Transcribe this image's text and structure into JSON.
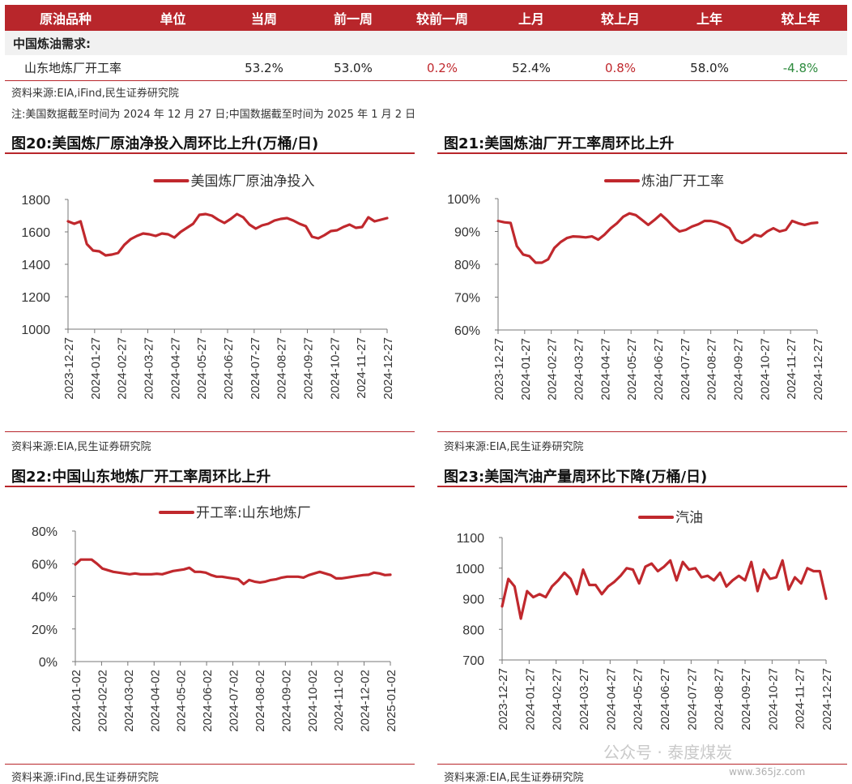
{
  "table": {
    "headers": [
      "原油品种",
      "单位",
      "当周",
      "前一周",
      "较前一周",
      "上月",
      "较上月",
      "上年",
      "较上年"
    ],
    "section_label": "中国炼油需求:",
    "row": {
      "name": "山东地炼厂开工率",
      "unit": "",
      "current": "53.2%",
      "prev_week": "53.0%",
      "wow": "0.2%",
      "last_month": "52.4%",
      "mom": "0.8%",
      "last_year": "58.0%",
      "yoy": "-4.8%"
    }
  },
  "notes": {
    "source": "资料来源:EIA,iFind,民生证券研究院",
    "note": "注:美国数据截至时间为 2024 年 12 月 27 日;中国数据截至时间为 2025 年 1 月 2 日"
  },
  "colors": {
    "accent": "#b8262b",
    "line": "#c0282d",
    "up": "#c0282d",
    "down": "#2e8b3e"
  },
  "charts": [
    {
      "title": "图20:美国炼厂原油净投入周环比上升(万桶/日)",
      "source": "资料来源:EIA,民生证券研究院"
    },
    {
      "title": "图21:美国炼油厂开工率周环比上升",
      "source": "资料来源:EIA,民生证券研究院"
    },
    {
      "title": "图22:中国山东地炼厂开工率周环比上升",
      "source": "资料来源:iFind,民生证券研究院"
    },
    {
      "title": "图23:美国汽油产量周环比下降(万桶/日)",
      "source": "资料来源:EIA,民生证券研究院"
    }
  ],
  "chart_data": [
    {
      "type": "line",
      "series": [
        {
          "name": "美国炼厂原油净投入",
          "values": [
            1665,
            1650,
            1665,
            1525,
            1485,
            1480,
            1455,
            1460,
            1470,
            1520,
            1555,
            1575,
            1590,
            1585,
            1575,
            1590,
            1585,
            1565,
            1600,
            1625,
            1650,
            1705,
            1710,
            1700,
            1675,
            1655,
            1680,
            1710,
            1690,
            1645,
            1620,
            1640,
            1650,
            1670,
            1680,
            1685,
            1670,
            1650,
            1635,
            1570,
            1560,
            1580,
            1605,
            1610,
            1630,
            1645,
            1625,
            1630,
            1690,
            1665,
            1675,
            1685
          ]
        }
      ],
      "x_tick_labels": [
        "2023-12-27",
        "2024-01-27",
        "2024-02-27",
        "2024-03-27",
        "2024-04-27",
        "2024-05-27",
        "2024-06-27",
        "2024-07-27",
        "2024-08-27",
        "2024-09-27",
        "2024-10-27",
        "2024-11-27",
        "2024-12-27"
      ],
      "y_ticks": [
        "1800",
        "1600",
        "1400",
        "1200",
        "1000"
      ],
      "ylim": [
        1000,
        1800
      ],
      "legend": "top"
    },
    {
      "type": "line",
      "series": [
        {
          "name": "炼油厂开工率",
          "values": [
            93.2,
            92.8,
            92.6,
            85.5,
            83,
            82.5,
            80.5,
            80.5,
            81.5,
            85,
            86.8,
            88,
            88.5,
            88.4,
            88.2,
            88.5,
            87.5,
            89,
            91,
            92.5,
            94.5,
            95.5,
            95,
            93.5,
            92,
            93.5,
            95.2,
            93.5,
            91.5,
            90,
            90.5,
            91.5,
            92.2,
            93.2,
            93.2,
            92.8,
            92,
            91,
            87.5,
            86.5,
            87.5,
            89,
            88.5,
            90,
            91,
            90,
            90.5,
            93.2,
            92.5,
            92,
            92.5,
            92.7
          ]
        }
      ],
      "x_tick_labels": [
        "2023-12-27",
        "2024-01-27",
        "2024-02-27",
        "2024-03-27",
        "2024-04-27",
        "2024-05-27",
        "2024-06-27",
        "2024-07-27",
        "2024-08-27",
        "2024-09-27",
        "2024-10-27",
        "2024-11-27",
        "2024-12-27"
      ],
      "y_ticks": [
        "100%",
        "90%",
        "80%",
        "70%",
        "60%"
      ],
      "ylim": [
        60,
        100
      ],
      "legend": "top"
    },
    {
      "type": "line",
      "series": [
        {
          "name": "开工率:山东地炼厂",
          "values": [
            59.5,
            62.5,
            62.5,
            62.5,
            60,
            57,
            56,
            55,
            54.5,
            54,
            53.5,
            54,
            53.5,
            53.5,
            53.5,
            53.8,
            53.5,
            54.5,
            55.5,
            56,
            56.5,
            57.5,
            55,
            55,
            54.5,
            53,
            52,
            52,
            51.5,
            51,
            50.5,
            47.5,
            50,
            49,
            48.5,
            49,
            50,
            50.5,
            51.5,
            52,
            52,
            52,
            51.5,
            53,
            54,
            55,
            54,
            53,
            51,
            51,
            51.5,
            52,
            52.5,
            53,
            53.2,
            54.5,
            54,
            53,
            53.2
          ]
        }
      ],
      "x_tick_labels": [
        "2024-01-02",
        "2024-02-02",
        "2024-03-02",
        "2024-04-02",
        "2024-05-02",
        "2024-06-02",
        "2024-07-02",
        "2024-08-02",
        "2024-09-02",
        "2024-10-02",
        "2024-11-02",
        "2024-12-02",
        "2025-01-02"
      ],
      "y_ticks": [
        "80%",
        "60%",
        "40%",
        "20%",
        "0%"
      ],
      "ylim": [
        0,
        80
      ],
      "legend": "top"
    },
    {
      "type": "line",
      "series": [
        {
          "name": "汽油",
          "values": [
            875,
            965,
            940,
            835,
            925,
            905,
            915,
            905,
            940,
            960,
            985,
            965,
            915,
            995,
            945,
            945,
            915,
            940,
            955,
            975,
            1000,
            995,
            950,
            1005,
            1015,
            990,
            1005,
            1025,
            960,
            1020,
            995,
            1000,
            970,
            975,
            960,
            985,
            940,
            960,
            975,
            960,
            1020,
            925,
            995,
            965,
            970,
            1025,
            930,
            970,
            950,
            1000,
            990,
            990,
            900
          ]
        }
      ],
      "x_tick_labels": [
        "2023-12-27",
        "2024-01-27",
        "2024-02-27",
        "2024-03-27",
        "2024-04-27",
        "2024-05-27",
        "2024-06-27",
        "2024-07-27",
        "2024-08-27",
        "2024-09-27",
        "2024-10-27",
        "2024-11-27",
        "2024-12-27"
      ],
      "y_ticks": [
        "1100",
        "1000",
        "900",
        "800",
        "700"
      ],
      "ylim": [
        700,
        1100
      ],
      "legend": "top"
    }
  ],
  "watermark": "公众号 · 泰度煤炭",
  "watermark_site": "www.365jz.com"
}
